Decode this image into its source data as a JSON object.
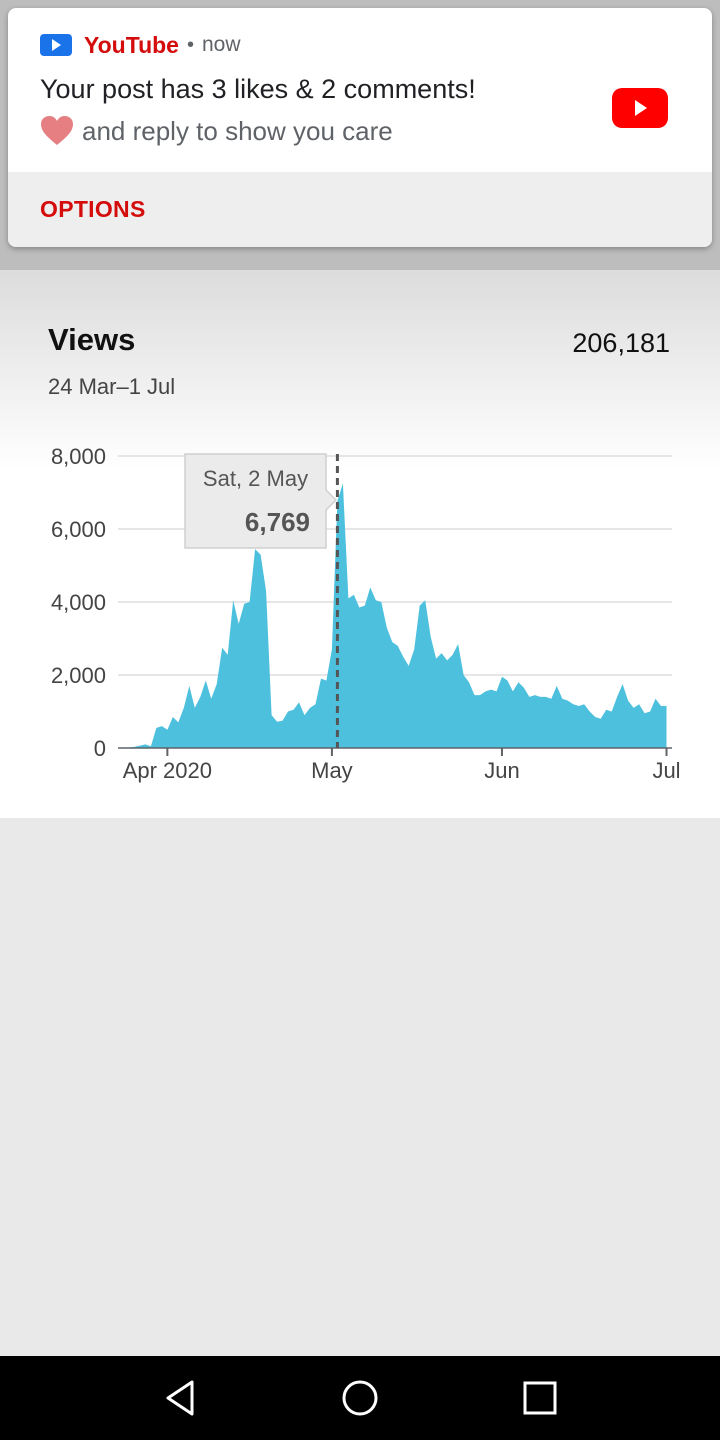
{
  "notification": {
    "app_name": "YouTube",
    "separator": "•",
    "time": "now",
    "title": "Your post has 3 likes & 2 comments!",
    "body": "and reply to show you care",
    "action_label": "OPTIONS",
    "icons": {
      "app": "youtube-play-icon",
      "heart": "heart-icon",
      "large": "youtube-logo-icon"
    }
  },
  "analytics": {
    "title": "Views",
    "total": "206,181",
    "date_range": "24 Mar–1 Jul"
  },
  "colors": {
    "accent": "#d40c0c",
    "area": "#4dc0de",
    "youtube_red": "#ff0000"
  },
  "chart_data": {
    "type": "area",
    "y_ticks": [
      "0",
      "2,000",
      "4,000",
      "6,000",
      "8,000"
    ],
    "ylim": [
      0,
      8000
    ],
    "x_range": [
      "2020-03-24",
      "2020-07-01"
    ],
    "x_ticks": [
      {
        "label": "Apr 2020",
        "date": "2020-04-01"
      },
      {
        "label": "May",
        "date": "2020-05-01"
      },
      {
        "label": "Jun",
        "date": "2020-06-01"
      },
      {
        "label": "Jul",
        "date": "2020-07-01"
      }
    ],
    "tooltip": {
      "date_label": "Sat, 2 May",
      "value_label": "6,769",
      "date": "2020-05-02"
    },
    "grid": true,
    "series": [
      {
        "values": [
          {
            "date": "2020-03-24",
            "v": 0
          },
          {
            "date": "2020-03-26",
            "v": 30
          },
          {
            "date": "2020-03-28",
            "v": 100
          },
          {
            "date": "2020-03-29",
            "v": 50
          },
          {
            "date": "2020-03-30",
            "v": 550
          },
          {
            "date": "2020-03-31",
            "v": 600
          },
          {
            "date": "2020-04-01",
            "v": 500
          },
          {
            "date": "2020-04-02",
            "v": 850
          },
          {
            "date": "2020-04-03",
            "v": 700
          },
          {
            "date": "2020-04-04",
            "v": 1100
          },
          {
            "date": "2020-04-05",
            "v": 1700
          },
          {
            "date": "2020-04-06",
            "v": 1100
          },
          {
            "date": "2020-04-07",
            "v": 1400
          },
          {
            "date": "2020-04-08",
            "v": 1850
          },
          {
            "date": "2020-04-09",
            "v": 1350
          },
          {
            "date": "2020-04-10",
            "v": 1750
          },
          {
            "date": "2020-04-11",
            "v": 2750
          },
          {
            "date": "2020-04-12",
            "v": 2550
          },
          {
            "date": "2020-04-13",
            "v": 4050
          },
          {
            "date": "2020-04-14",
            "v": 3400
          },
          {
            "date": "2020-04-15",
            "v": 3950
          },
          {
            "date": "2020-04-16",
            "v": 4000
          },
          {
            "date": "2020-04-17",
            "v": 5450
          },
          {
            "date": "2020-04-18",
            "v": 5300
          },
          {
            "date": "2020-04-19",
            "v": 4300
          },
          {
            "date": "2020-04-20",
            "v": 900
          },
          {
            "date": "2020-04-21",
            "v": 720
          },
          {
            "date": "2020-04-22",
            "v": 750
          },
          {
            "date": "2020-04-23",
            "v": 1000
          },
          {
            "date": "2020-04-24",
            "v": 1050
          },
          {
            "date": "2020-04-25",
            "v": 1250
          },
          {
            "date": "2020-04-26",
            "v": 900
          },
          {
            "date": "2020-04-27",
            "v": 1100
          },
          {
            "date": "2020-04-28",
            "v": 1200
          },
          {
            "date": "2020-04-29",
            "v": 1900
          },
          {
            "date": "2020-04-30",
            "v": 1850
          },
          {
            "date": "2020-05-01",
            "v": 2700
          },
          {
            "date": "2020-05-02",
            "v": 6769
          },
          {
            "date": "2020-05-03",
            "v": 7250
          },
          {
            "date": "2020-05-04",
            "v": 4100
          },
          {
            "date": "2020-05-05",
            "v": 4200
          },
          {
            "date": "2020-05-06",
            "v": 3850
          },
          {
            "date": "2020-05-07",
            "v": 3900
          },
          {
            "date": "2020-05-08",
            "v": 4400
          },
          {
            "date": "2020-05-09",
            "v": 4050
          },
          {
            "date": "2020-05-10",
            "v": 4000
          },
          {
            "date": "2020-05-11",
            "v": 3300
          },
          {
            "date": "2020-05-12",
            "v": 2900
          },
          {
            "date": "2020-05-13",
            "v": 2800
          },
          {
            "date": "2020-05-14",
            "v": 2500
          },
          {
            "date": "2020-05-15",
            "v": 2250
          },
          {
            "date": "2020-05-16",
            "v": 2700
          },
          {
            "date": "2020-05-17",
            "v": 3900
          },
          {
            "date": "2020-05-18",
            "v": 4050
          },
          {
            "date": "2020-05-19",
            "v": 3050
          },
          {
            "date": "2020-05-20",
            "v": 2450
          },
          {
            "date": "2020-05-21",
            "v": 2600
          },
          {
            "date": "2020-05-22",
            "v": 2400
          },
          {
            "date": "2020-05-23",
            "v": 2550
          },
          {
            "date": "2020-05-24",
            "v": 2850
          },
          {
            "date": "2020-05-25",
            "v": 2000
          },
          {
            "date": "2020-05-26",
            "v": 1800
          },
          {
            "date": "2020-05-27",
            "v": 1450
          },
          {
            "date": "2020-05-28",
            "v": 1450
          },
          {
            "date": "2020-05-29",
            "v": 1550
          },
          {
            "date": "2020-05-30",
            "v": 1600
          },
          {
            "date": "2020-05-31",
            "v": 1550
          },
          {
            "date": "2020-06-01",
            "v": 1950
          },
          {
            "date": "2020-06-02",
            "v": 1850
          },
          {
            "date": "2020-06-03",
            "v": 1550
          },
          {
            "date": "2020-06-04",
            "v": 1800
          },
          {
            "date": "2020-06-05",
            "v": 1650
          },
          {
            "date": "2020-06-06",
            "v": 1400
          },
          {
            "date": "2020-06-07",
            "v": 1450
          },
          {
            "date": "2020-06-08",
            "v": 1400
          },
          {
            "date": "2020-06-09",
            "v": 1400
          },
          {
            "date": "2020-06-10",
            "v": 1350
          },
          {
            "date": "2020-06-11",
            "v": 1700
          },
          {
            "date": "2020-06-12",
            "v": 1350
          },
          {
            "date": "2020-06-13",
            "v": 1300
          },
          {
            "date": "2020-06-14",
            "v": 1200
          },
          {
            "date": "2020-06-15",
            "v": 1150
          },
          {
            "date": "2020-06-16",
            "v": 1200
          },
          {
            "date": "2020-06-17",
            "v": 1000
          },
          {
            "date": "2020-06-18",
            "v": 850
          },
          {
            "date": "2020-06-19",
            "v": 800
          },
          {
            "date": "2020-06-20",
            "v": 1050
          },
          {
            "date": "2020-06-21",
            "v": 1000
          },
          {
            "date": "2020-06-22",
            "v": 1400
          },
          {
            "date": "2020-06-23",
            "v": 1750
          },
          {
            "date": "2020-06-24",
            "v": 1300
          },
          {
            "date": "2020-06-25",
            "v": 1100
          },
          {
            "date": "2020-06-26",
            "v": 1200
          },
          {
            "date": "2020-06-27",
            "v": 950
          },
          {
            "date": "2020-06-28",
            "v": 1000
          },
          {
            "date": "2020-06-29",
            "v": 1350
          },
          {
            "date": "2020-06-30",
            "v": 1150
          },
          {
            "date": "2020-07-01",
            "v": 1150
          }
        ]
      }
    ]
  },
  "navigation": {
    "back": "back-icon",
    "home": "home-icon",
    "recents": "recents-icon"
  }
}
